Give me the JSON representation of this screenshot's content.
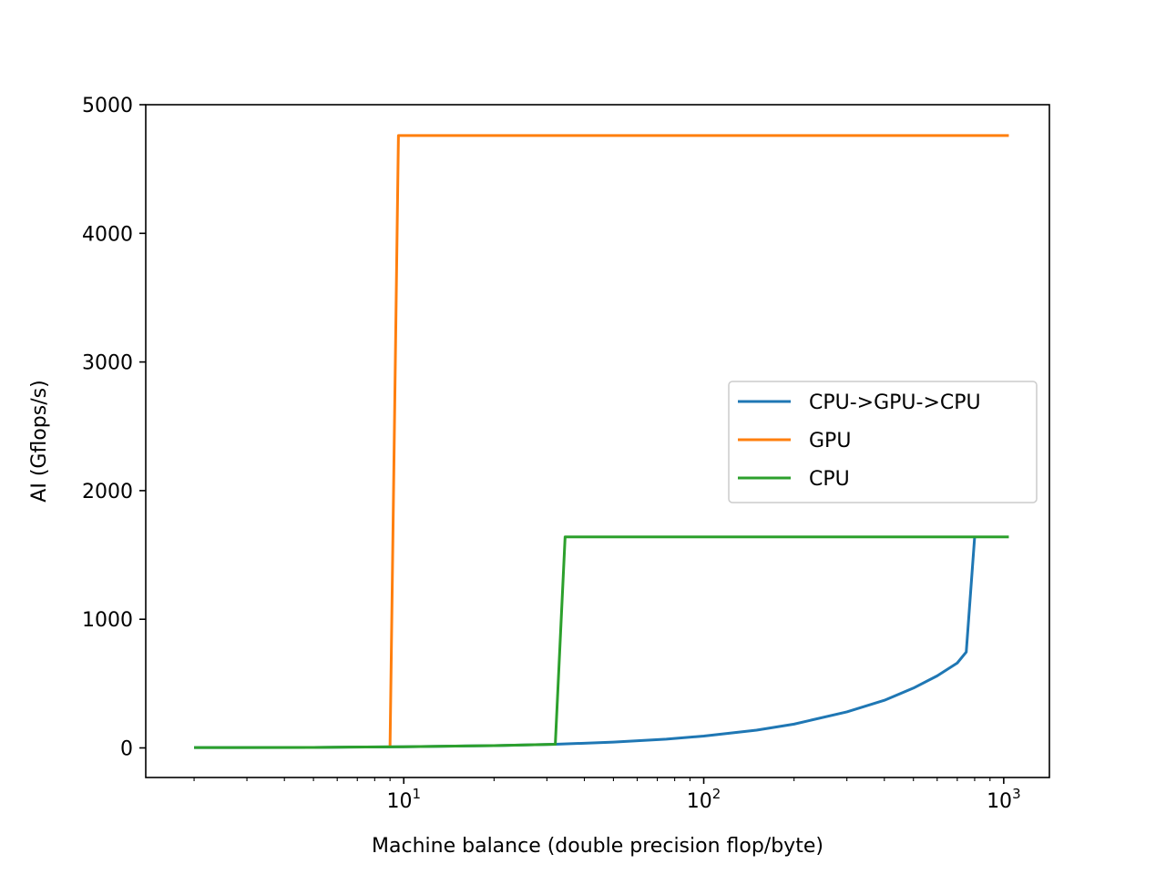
{
  "chart_data": {
    "type": "line",
    "title": "",
    "xlabel": "Machine balance (double precision flop/byte)",
    "ylabel": "AI (Gflops/s)",
    "xscale": "log",
    "xlim": [
      1.38,
      1420
    ],
    "ylim": [
      -230,
      5000
    ],
    "xticks": [
      {
        "value": 10,
        "base": "10",
        "exp": "1"
      },
      {
        "value": 100,
        "base": "10",
        "exp": "2"
      },
      {
        "value": 1000,
        "base": "10",
        "exp": "3"
      }
    ],
    "yticks": [
      0,
      1000,
      2000,
      3000,
      4000,
      5000
    ],
    "grid": false,
    "legend_position": "center-right",
    "series": [
      {
        "name": "CPU->GPU->CPU",
        "color": "#1f77b4",
        "points": [
          [
            2,
            2.5
          ],
          [
            5,
            4
          ],
          [
            10,
            9
          ],
          [
            20,
            18
          ],
          [
            32,
            28
          ],
          [
            50,
            45
          ],
          [
            75,
            68
          ],
          [
            100,
            92
          ],
          [
            150,
            138
          ],
          [
            200,
            185
          ],
          [
            300,
            280
          ],
          [
            400,
            370
          ],
          [
            500,
            465
          ],
          [
            600,
            560
          ],
          [
            700,
            660
          ],
          [
            750,
            745
          ],
          [
            800,
            1640
          ]
        ]
      },
      {
        "name": "GPU",
        "color": "#ff7f0e",
        "points": [
          [
            9,
            15
          ],
          [
            9.6,
            4760
          ],
          [
            1040,
            4760
          ]
        ]
      },
      {
        "name": "CPU",
        "color": "#2ca02c",
        "points": [
          [
            2,
            2.5
          ],
          [
            5,
            4
          ],
          [
            10,
            9
          ],
          [
            20,
            18
          ],
          [
            32,
            28
          ],
          [
            34.5,
            1640
          ],
          [
            1040,
            1640
          ]
        ]
      }
    ]
  }
}
